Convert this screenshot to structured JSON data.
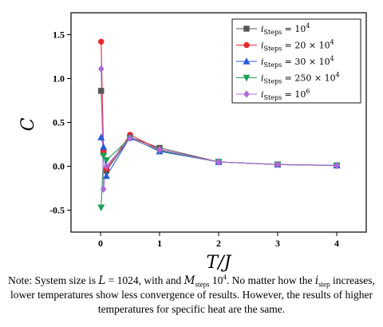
{
  "chart_data": {
    "type": "line",
    "ylabel": "C",
    "xlabel": "T/J",
    "xlim": [
      -0.5,
      4.5
    ],
    "ylim": [
      -0.75,
      1.75
    ],
    "xticks": [
      0,
      1,
      2,
      3,
      4
    ],
    "yticks": [
      -0.5,
      0.0,
      0.5,
      1.0,
      1.5
    ],
    "xtick_labels": [
      "0",
      "1",
      "2",
      "3",
      "4"
    ],
    "ytick_labels": [
      "-0.5",
      "0.0",
      "0.5",
      "1.0",
      "1.5"
    ],
    "grid": false,
    "legend_position": "top-right",
    "x": [
      0.01,
      0.05,
      0.1,
      0.5,
      1,
      2,
      3,
      4
    ],
    "series": [
      {
        "name_prefix": "i",
        "name_sub": "Steps",
        "name_rest": " = 10",
        "name_sup": "4",
        "color": "#555555",
        "marker": "square",
        "values": [
          0.86,
          0.16,
          -0.05,
          0.33,
          0.21,
          0.05,
          0.02,
          0.01
        ]
      },
      {
        "name_prefix": "i",
        "name_sub": "Steps",
        "name_rest": " = 20 × 10",
        "name_sup": "4",
        "color": "#e8262c",
        "marker": "circle",
        "values": [
          1.42,
          0.17,
          -0.03,
          0.36,
          0.19,
          0.05,
          0.02,
          0.01
        ]
      },
      {
        "name_prefix": "i",
        "name_sub": "Steps",
        "name_rest": " = 30 × 10",
        "name_sup": "4",
        "color": "#2b5bd8",
        "marker": "triangle-up",
        "values": [
          0.33,
          0.22,
          -0.11,
          0.33,
          0.17,
          0.05,
          0.02,
          0.01
        ]
      },
      {
        "name_prefix": "i",
        "name_sub": "Steps",
        "name_rest": " = 250 × 10",
        "name_sup": "4",
        "color": "#1d9e56",
        "marker": "triangle-down",
        "values": [
          -0.47,
          0.12,
          0.07,
          0.32,
          0.18,
          0.05,
          0.02,
          0.01
        ]
      },
      {
        "name_prefix": "i",
        "name_sub": "Steps",
        "name_rest": " = 10",
        "name_sup": "6",
        "color": "#b069d8",
        "marker": "diamond",
        "values": [
          1.11,
          -0.26,
          0.0,
          0.32,
          0.19,
          0.05,
          0.02,
          0.01
        ]
      }
    ]
  },
  "note": {
    "p1": "Note: System size is ",
    "L_var": "L",
    "p2": " = 1024, with and ",
    "M_var": "M",
    "M_sub": "steps",
    "p3": " 10",
    "sup": "4",
    "p4": ". No matter how the ",
    "i_var": "i",
    "i_sub": "step",
    "p5": " increases, lower temperatures show less convergence of results. However, the results of higher temperatures for specific heat are the same."
  }
}
